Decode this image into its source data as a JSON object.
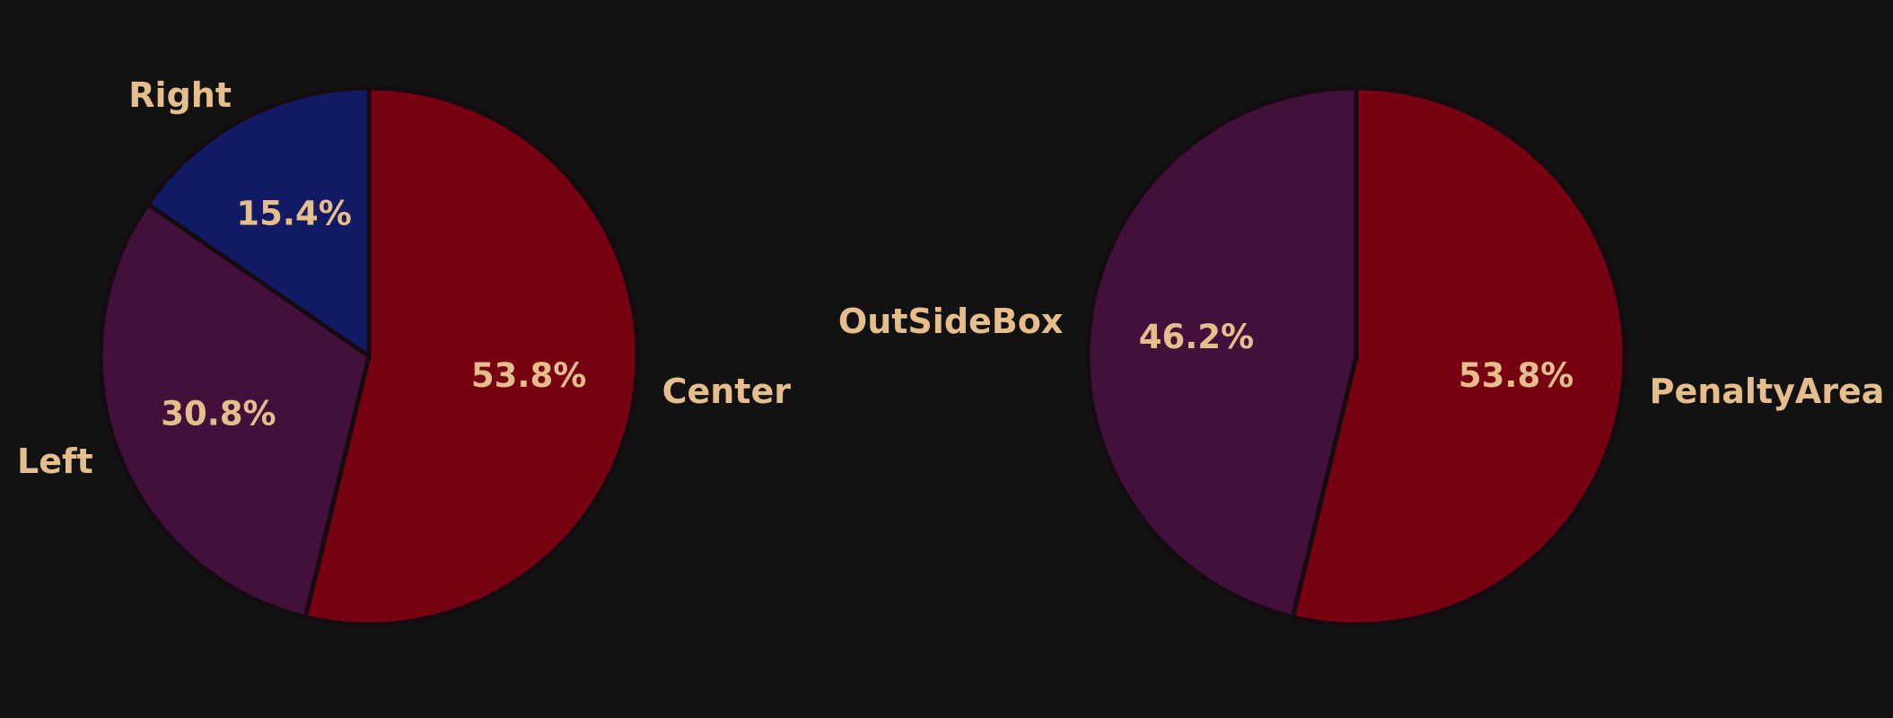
{
  "colors": {
    "background": "#121212",
    "text": "#e6be8c",
    "slice_border": "#150c12",
    "maroon": "#770211",
    "plum": "#42103a",
    "navy": "#121a66"
  },
  "chart_data": [
    {
      "type": "pie",
      "start": "top",
      "direction": "clockwise",
      "slices": [
        {
          "label": "Center",
          "value": 53.8,
          "pct_label": "53.8%",
          "color": "#770211"
        },
        {
          "label": "Left",
          "value": 30.8,
          "pct_label": "30.8%",
          "color": "#42103a"
        },
        {
          "label": "Right",
          "value": 15.4,
          "pct_label": "15.4%",
          "color": "#121a66"
        }
      ]
    },
    {
      "type": "pie",
      "start": "top",
      "direction": "clockwise",
      "slices": [
        {
          "label": "PenaltyArea",
          "value": 53.8,
          "pct_label": "53.8%",
          "color": "#770211"
        },
        {
          "label": "OutSideBox",
          "value": 46.2,
          "pct_label": "46.2%",
          "color": "#42103a"
        }
      ]
    }
  ]
}
